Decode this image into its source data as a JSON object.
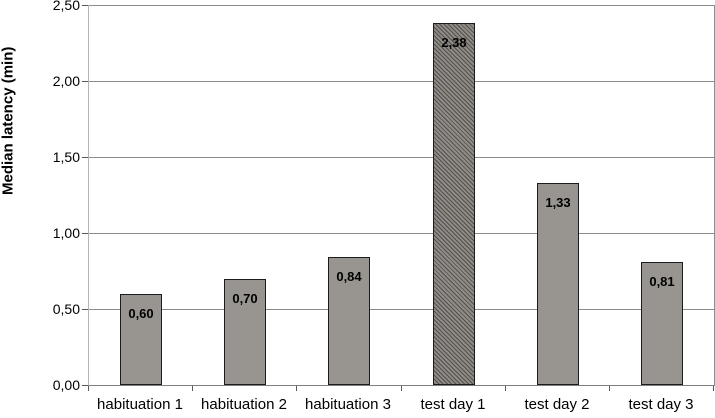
{
  "chart_data": {
    "type": "bar",
    "title": "",
    "xlabel": "",
    "ylabel": "Median latency (min)",
    "categories": [
      "habituation 1",
      "habituation 2",
      "habituation 3",
      "test day 1",
      "test day 2",
      "test day 3"
    ],
    "values": [
      0.6,
      0.7,
      0.84,
      2.38,
      1.33,
      0.81
    ],
    "value_labels": [
      "0,60",
      "0,70",
      "0,84",
      "2,38",
      "1,33",
      "0,81"
    ],
    "bar_styles": [
      "solid",
      "solid",
      "solid",
      "hatched",
      "solid",
      "solid"
    ],
    "ylim": [
      0,
      2.5
    ],
    "ytick_values": [
      0,
      0.5,
      1,
      1.5,
      2,
      2.5
    ],
    "ytick_labels": [
      "0,00",
      "0,50",
      "1,00",
      "1,50",
      "2,00",
      "2,50"
    ],
    "decimal_separator": ",",
    "grid": "horizontal",
    "legend": "none",
    "colors": {
      "background": "#ffffff",
      "bar_fill": "#98948f",
      "bar_border": "#1c1c1c",
      "hatch_line": "#3d3833",
      "gridline": "#8c8c8c",
      "axis": "#7f7f7f",
      "text": "#000000"
    }
  }
}
